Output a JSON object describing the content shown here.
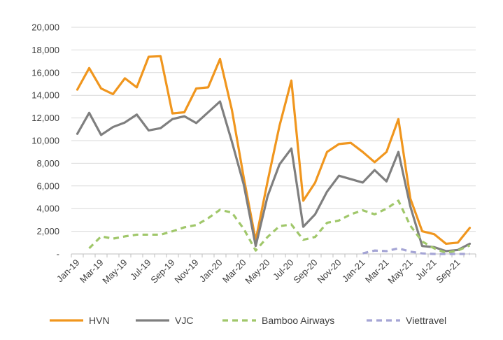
{
  "chart_data": {
    "type": "line",
    "title": "",
    "xlabel": "",
    "ylabel": "",
    "ylim": [
      0,
      20000
    ],
    "yticks": [
      0,
      2000,
      4000,
      6000,
      8000,
      10000,
      12000,
      14000,
      16000,
      18000,
      20000
    ],
    "ytick_labels": [
      "-",
      "2,000",
      "4,000",
      "6,000",
      "8,000",
      "10,000",
      "12,000",
      "14,000",
      "16,000",
      "18,000",
      "20,000"
    ],
    "grid": true,
    "legend_position": "bottom",
    "categories": [
      "Jan-19",
      "Feb-19",
      "Mar-19",
      "Apr-19",
      "May-19",
      "Jun-19",
      "Jul-19",
      "Aug-19",
      "Sep-19",
      "Oct-19",
      "Nov-19",
      "Dec-19",
      "Jan-20",
      "Feb-20",
      "Mar-20",
      "Apr-20",
      "May-20",
      "Jun-20",
      "Jul-20",
      "Aug-20",
      "Sep-20",
      "Oct-20",
      "Nov-20",
      "Dec-20",
      "Jan-21",
      "Feb-21",
      "Mar-21",
      "Apr-21",
      "May-21",
      "Jun-21",
      "Jul-21",
      "Aug-21",
      "Sep-21",
      "Oct-21"
    ],
    "xtick_labels": [
      "Jan-19",
      "Mar-19",
      "May-19",
      "Jul-19",
      "Sep-19",
      "Nov-19",
      "Jan-20",
      "Mar-20",
      "May-20",
      "Jul-20",
      "Sep-20",
      "Nov-20",
      "Jan-21",
      "Mar-21",
      "May-21",
      "Jul-21",
      "Sep-21"
    ],
    "series": [
      {
        "name": "HVN",
        "color": "#F0961E",
        "dash": "solid",
        "values": [
          14500,
          16400,
          14600,
          14100,
          15500,
          14700,
          17400,
          17450,
          12400,
          12500,
          14600,
          14700,
          17200,
          12700,
          6700,
          1200,
          6400,
          11300,
          15300,
          4700,
          6300,
          9000,
          9700,
          9800,
          9000,
          8100,
          9000,
          11900,
          4900,
          2000,
          1750,
          900,
          1000,
          2300
        ]
      },
      {
        "name": "VJC",
        "color": "#7F7F7F",
        "dash": "solid",
        "values": [
          10600,
          12450,
          10500,
          11200,
          11600,
          12300,
          10900,
          11100,
          11900,
          12150,
          11550,
          12500,
          13450,
          9900,
          6100,
          700,
          5100,
          7900,
          9300,
          2400,
          3500,
          5500,
          6900,
          6600,
          6300,
          7400,
          6400,
          9000,
          4200,
          700,
          600,
          250,
          350,
          900
        ]
      },
      {
        "name": "Bamboo Airways",
        "color": "#A0C76A",
        "dash": "dashed",
        "values": [
          null,
          500,
          1550,
          1350,
          1550,
          1700,
          1700,
          1700,
          2000,
          2350,
          2550,
          3150,
          3900,
          3650,
          2200,
          300,
          1500,
          2450,
          2600,
          1250,
          1500,
          2750,
          2950,
          3500,
          3850,
          3500,
          4000,
          4700,
          2500,
          1100,
          500,
          100,
          300,
          750
        ]
      },
      {
        "name": "Viettravel",
        "color": "#A5A5D5",
        "dash": "dashed",
        "values": [
          null,
          null,
          null,
          null,
          null,
          null,
          null,
          null,
          null,
          null,
          null,
          null,
          null,
          null,
          null,
          null,
          null,
          null,
          null,
          null,
          null,
          null,
          null,
          null,
          50,
          300,
          250,
          500,
          200,
          50,
          0,
          0,
          0,
          0
        ]
      }
    ]
  }
}
